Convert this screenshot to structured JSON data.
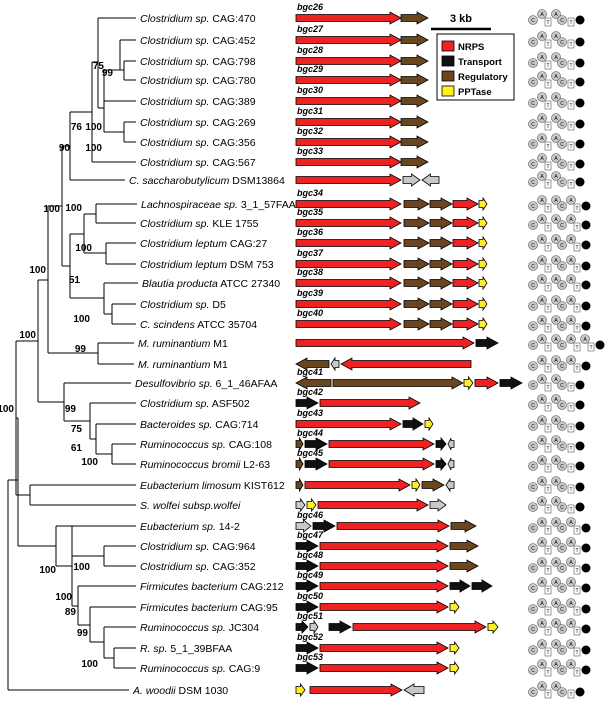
{
  "colors": {
    "NRPS": "#ee2222",
    "Transport": "#111111",
    "Regulatory": "#6b4520",
    "PPTase": "#ffee22",
    "Other": "#c8c8c8"
  },
  "scale": {
    "label": "3 kb",
    "kb": 3
  },
  "legend": [
    {
      "label": "NRPS",
      "key": "NRPS"
    },
    {
      "label": "Transport",
      "key": "Transport"
    },
    {
      "label": "Regulatory",
      "key": "Regulatory"
    },
    {
      "label": "PPTase",
      "key": "PPTase"
    }
  ],
  "taxa": [
    {
      "italic": "Clostridium sp.",
      "plain": " CAG:470",
      "bgc": "bgc26",
      "genes": [
        [
          "N",
          0,
          105
        ],
        [
          "R",
          105,
          27
        ]
      ],
      "dom": [
        "C",
        "A",
        "T",
        "A",
        "C",
        "T",
        "T"
      ]
    },
    {
      "italic": "Clostridium sp.",
      "plain": " CAG:452",
      "bgc": "bgc27",
      "genes": [
        [
          "N",
          0,
          105
        ],
        [
          "R",
          105,
          27
        ]
      ],
      "dom": [
        "C",
        "A",
        "T",
        "A",
        "C",
        "T",
        "T"
      ]
    },
    {
      "italic": "Clostridium sp.",
      "plain": " CAG:798",
      "bgc": "bgc28",
      "genes": [
        [
          "N",
          0,
          105
        ],
        [
          "R",
          105,
          27
        ]
      ],
      "dom": [
        "C",
        "A",
        "T",
        "A",
        "C",
        "T",
        "T"
      ]
    },
    {
      "italic": "Clostridium sp.",
      "plain": " CAG:780",
      "bgc": "bgc29",
      "genes": [
        [
          "N",
          0,
          105
        ],
        [
          "R",
          105,
          27
        ]
      ],
      "dom": [
        "C",
        "A",
        "T",
        "A",
        "C",
        "T",
        "T"
      ]
    },
    {
      "italic": "Clostridium sp.",
      "plain": " CAG:389",
      "bgc": "bgc30",
      "genes": [
        [
          "N",
          0,
          105
        ],
        [
          "R",
          105,
          27
        ]
      ],
      "dom": [
        "C",
        "A",
        "T",
        "A",
        "C",
        "T",
        "T"
      ]
    },
    {
      "italic": "Clostridium sp.",
      "plain": " CAG:269",
      "bgc": "bgc31",
      "genes": [
        [
          "N",
          0,
          105
        ],
        [
          "R",
          105,
          27
        ]
      ],
      "dom": [
        "C",
        "A",
        "T",
        "A",
        "C",
        "T",
        "T"
      ]
    },
    {
      "italic": "Clostridium sp.",
      "plain": " CAG:356",
      "bgc": "bgc32",
      "genes": [
        [
          "N",
          0,
          105
        ],
        [
          "R",
          105,
          27
        ]
      ],
      "dom": [
        "C",
        "A",
        "T",
        "A",
        "C",
        "T",
        "T"
      ]
    },
    {
      "italic": "Clostridium sp.",
      "plain": " CAG:567",
      "bgc": "bgc33",
      "genes": [
        [
          "N",
          0,
          105
        ],
        [
          "R",
          105,
          27
        ]
      ],
      "dom": [
        "C",
        "A",
        "T",
        "A",
        "C",
        "T",
        "T"
      ]
    },
    {
      "italic": "C. saccharobutylicum",
      "plain": " DSM13864",
      "bgc": "",
      "genes": [
        [
          "N",
          0,
          105
        ],
        [
          "O",
          107,
          17
        ],
        [
          "O",
          126,
          17,
          -1
        ]
      ],
      "dom": [
        "C",
        "A",
        "T",
        "A",
        "C",
        "T",
        "T"
      ]
    },
    {
      "italic": "Lachnospiraceae sp.",
      "plain": " 3_1_57FAA",
      "bgc": "bgc34",
      "genes": [
        [
          "N",
          0,
          105
        ],
        [
          "R",
          108,
          25
        ],
        [
          "R",
          134,
          22
        ],
        [
          "N",
          157,
          25
        ],
        [
          "P",
          183,
          8
        ]
      ],
      "dom": [
        "C",
        "A",
        "T",
        "A",
        "C",
        "A",
        "T",
        "T"
      ]
    },
    {
      "italic": "Clostridium sp.",
      "plain": " KLE 1755",
      "bgc": "bgc35",
      "genes": [
        [
          "N",
          0,
          105
        ],
        [
          "R",
          108,
          25
        ],
        [
          "R",
          134,
          22
        ],
        [
          "N",
          157,
          25
        ],
        [
          "P",
          183,
          8
        ]
      ],
      "dom": [
        "C",
        "A",
        "T",
        "A",
        "C",
        "A",
        "T",
        "T"
      ]
    },
    {
      "italic": "Clostridium leptum",
      "plain": " CAG:27",
      "bgc": "bgc36",
      "genes": [
        [
          "N",
          0,
          105
        ],
        [
          "R",
          108,
          25
        ],
        [
          "R",
          134,
          22
        ],
        [
          "N",
          157,
          25
        ],
        [
          "P",
          183,
          8
        ]
      ],
      "dom": [
        "C",
        "A",
        "T",
        "A",
        "C",
        "A",
        "T",
        "T"
      ]
    },
    {
      "italic": "Clostridium leptum",
      "plain": " DSM 753",
      "bgc": "bgc37",
      "genes": [
        [
          "N",
          0,
          105
        ],
        [
          "R",
          108,
          25
        ],
        [
          "R",
          134,
          22
        ],
        [
          "N",
          157,
          25
        ],
        [
          "P",
          183,
          8
        ]
      ],
      "dom": [
        "C",
        "A",
        "T",
        "A",
        "C",
        "A",
        "T",
        "T"
      ]
    },
    {
      "italic": "Blautia producta",
      "plain": " ATCC 27340",
      "bgc": "bgc38",
      "genes": [
        [
          "N",
          0,
          105
        ],
        [
          "R",
          108,
          25
        ],
        [
          "R",
          134,
          22
        ],
        [
          "N",
          157,
          25
        ],
        [
          "P",
          183,
          8
        ]
      ],
      "dom": [
        "C",
        "A",
        "T",
        "A",
        "C",
        "A",
        "T",
        "T"
      ]
    },
    {
      "italic": "Clostridium sp.",
      "plain": " D5",
      "bgc": "bgc39",
      "genes": [
        [
          "N",
          0,
          105
        ],
        [
          "R",
          108,
          25
        ],
        [
          "R",
          134,
          22
        ],
        [
          "N",
          157,
          25
        ],
        [
          "P",
          183,
          8
        ]
      ],
      "dom": [
        "C",
        "A",
        "T",
        "A",
        "C",
        "A",
        "T",
        "T"
      ]
    },
    {
      "italic": "C. scindens",
      "plain": " ATCC 35704",
      "bgc": "bgc40",
      "genes": [
        [
          "N",
          0,
          105
        ],
        [
          "R",
          108,
          25
        ],
        [
          "R",
          134,
          22
        ],
        [
          "N",
          157,
          25
        ],
        [
          "P",
          183,
          8
        ]
      ],
      "dom": [
        "C",
        "A",
        "T",
        "A",
        "C",
        "A",
        "T",
        "T"
      ]
    },
    {
      "italic": "M. ruminantium",
      "plain": " M1",
      "bgc": "",
      "genes": [
        [
          "N",
          0,
          178
        ],
        [
          "T",
          180,
          22
        ]
      ],
      "dom": [
        "C",
        "A",
        "T",
        "A",
        "C",
        "A",
        "T",
        "A",
        "T",
        "T"
      ]
    },
    {
      "italic": "M. ruminantium",
      "plain": " M1",
      "bgc": "",
      "genes": [
        [
          "R",
          0,
          33,
          -1
        ],
        [
          "O",
          35,
          8,
          -1
        ],
        [
          "N",
          45,
          130,
          -1
        ]
      ],
      "dom": [
        "C",
        "A",
        "T",
        "A",
        "C",
        "A",
        "T",
        "T"
      ]
    },
    {
      "italic": "Desulfovibrio sp.",
      "plain": " 6_1_46AFAA",
      "bgc": "bgc41",
      "genes": [
        [
          "R",
          0,
          35,
          -1
        ],
        [
          "R",
          37,
          130
        ],
        [
          "P",
          168,
          9
        ],
        [
          "N",
          179,
          23
        ],
        [
          "T",
          204,
          22
        ]
      ],
      "dom": [
        "C",
        "A",
        "T",
        "A",
        "C",
        "T",
        "T"
      ]
    },
    {
      "italic": "Clostridium sp.",
      "plain": " ASF502",
      "bgc": "bgc42",
      "genes": [
        [
          "T",
          0,
          22
        ],
        [
          "N",
          24,
          100
        ]
      ],
      "dom": [
        "C",
        "A",
        "T",
        "A",
        "C",
        "T",
        "T"
      ]
    },
    {
      "italic": "Bacteroides sp.",
      "plain": " CAG:714",
      "bgc": "bgc43",
      "genes": [
        [
          "N",
          0,
          105
        ],
        [
          "T",
          107,
          20
        ],
        [
          "P",
          129,
          8
        ]
      ],
      "dom": [
        "C",
        "A",
        "T",
        "A",
        "C",
        "T",
        "T"
      ]
    },
    {
      "italic": "Ruminococcus sp.",
      "plain": " CAG:108",
      "bgc": "bgc44",
      "genes": [
        [
          "R",
          0,
          7
        ],
        [
          "T",
          9,
          22
        ],
        [
          "N",
          33,
          105
        ],
        [
          "T",
          140,
          10
        ],
        [
          "O",
          152,
          6,
          -1
        ]
      ],
      "dom": [
        "C",
        "A",
        "T",
        "A",
        "C",
        "T",
        "T"
      ]
    },
    {
      "italic": "Ruminococcus bromii",
      "plain": " L2-63",
      "bgc": "bgc45",
      "genes": [
        [
          "R",
          0,
          7
        ],
        [
          "T",
          9,
          22
        ],
        [
          "N",
          33,
          105
        ],
        [
          "T",
          140,
          10
        ],
        [
          "O",
          152,
          6,
          -1
        ]
      ],
      "dom": [
        "C",
        "A",
        "T",
        "A",
        "C",
        "T",
        "T"
      ]
    },
    {
      "italic": "Eubacterium limosum",
      "plain": " KIST612",
      "bgc": "",
      "genes": [
        [
          "R",
          0,
          7
        ],
        [
          "N",
          9,
          105
        ],
        [
          "P",
          116,
          8
        ],
        [
          "R",
          126,
          22
        ],
        [
          "O",
          150,
          8,
          -1
        ]
      ],
      "dom": [
        "C",
        "A",
        "T",
        "A",
        "C",
        "T",
        "T"
      ]
    },
    {
      "italic": "S. wolfei subsp.wolfei",
      "plain": "",
      "bgc": "",
      "genes": [
        [
          "O",
          0,
          9
        ],
        [
          "P",
          11,
          9
        ],
        [
          "N",
          22,
          110
        ],
        [
          "O",
          134,
          16
        ]
      ],
      "dom": [
        "C",
        "A",
        "T",
        "A",
        "C",
        "T",
        "T"
      ]
    },
    {
      "italic": "Eubacterium sp.",
      "plain": " 14-2",
      "bgc": "bgc46",
      "genes": [
        [
          "O",
          0,
          15
        ],
        [
          "T",
          17,
          22
        ],
        [
          "N",
          41,
          112
        ],
        [
          "R",
          155,
          25
        ]
      ],
      "dom": [
        "C",
        "A",
        "T",
        "A",
        "C",
        "A",
        "T",
        "T"
      ]
    },
    {
      "italic": "Clostridium sp.",
      "plain": " CAG:964",
      "bgc": "bgc47",
      "genes": [
        [
          "T",
          0,
          22
        ],
        [
          "N",
          24,
          128
        ],
        [
          "R",
          154,
          28
        ]
      ],
      "dom": [
        "C",
        "A",
        "T",
        "A",
        "C",
        "A",
        "T",
        "T"
      ]
    },
    {
      "italic": "Clostridium sp.",
      "plain": " CAG:352",
      "bgc": "bgc48",
      "genes": [
        [
          "T",
          0,
          22
        ],
        [
          "N",
          24,
          128
        ],
        [
          "R",
          154,
          28
        ]
      ],
      "dom": [
        "C",
        "A",
        "T",
        "A",
        "C",
        "A",
        "T",
        "T"
      ]
    },
    {
      "italic": "Firmicutes bacterium",
      "plain": " CAG:212",
      "bgc": "bgc49",
      "genes": [
        [
          "T",
          0,
          22
        ],
        [
          "N",
          24,
          128
        ],
        [
          "T",
          154,
          20
        ],
        [
          "T",
          176,
          20
        ]
      ],
      "dom": [
        "C",
        "A",
        "T",
        "A",
        "C",
        "A",
        "T",
        "T"
      ]
    },
    {
      "italic": "Firmicutes bacterium",
      "plain": " CAG:95",
      "bgc": "bgc50",
      "genes": [
        [
          "T",
          0,
          22
        ],
        [
          "N",
          24,
          128
        ],
        [
          "P",
          154,
          9
        ]
      ],
      "dom": [
        "C",
        "A",
        "T",
        "A",
        "C",
        "A",
        "T",
        "T"
      ]
    },
    {
      "italic": "Ruminococcus sp.",
      "plain": " JC304",
      "bgc": "bgc51",
      "genes": [
        [
          "T",
          0,
          12
        ],
        [
          "O",
          14,
          8
        ],
        [
          "T",
          33,
          22
        ],
        [
          "N",
          57,
          133
        ],
        [
          "P",
          192,
          10
        ]
      ],
      "dom": [
        "C",
        "A",
        "T",
        "A",
        "C",
        "A",
        "T",
        "T"
      ]
    },
    {
      "italic": "R. sp.",
      "plain": " 5_1_39BFAA",
      "bgc": "bgc52",
      "genes": [
        [
          "T",
          0,
          22
        ],
        [
          "N",
          24,
          128
        ],
        [
          "P",
          154,
          9
        ]
      ],
      "dom": [
        "C",
        "A",
        "T",
        "A",
        "C",
        "A",
        "T",
        "T"
      ]
    },
    {
      "italic": "Ruminococcus sp.",
      "plain": " CAG:9",
      "bgc": "bgc53",
      "genes": [
        [
          "T",
          0,
          22
        ],
        [
          "N",
          24,
          128
        ],
        [
          "P",
          154,
          9
        ]
      ],
      "dom": [
        "C",
        "A",
        "T",
        "A",
        "C",
        "A",
        "T",
        "T"
      ]
    },
    {
      "italic": "A. woodii",
      "plain": " DSM 1030",
      "bgc": "",
      "genes": [
        [
          "P",
          0,
          9
        ],
        [
          "N",
          14,
          92
        ],
        [
          "O",
          108,
          20,
          -1
        ]
      ],
      "dom": [
        "C",
        "A",
        "T",
        "A",
        "C",
        "T",
        "T"
      ]
    }
  ],
  "bootstrap": [
    {
      "label": "75",
      "at": "n_28_29"
    },
    {
      "label": "99",
      "at": "n_28_29_b"
    },
    {
      "label": "100",
      "at": "n_31_32"
    },
    {
      "label": "100",
      "at": "n_31_32_b"
    },
    {
      "label": "76",
      "at": "n_76"
    },
    {
      "label": "90",
      "at": "n_90"
    },
    {
      "label": "100",
      "at": "n_clade1"
    },
    {
      "label": "100",
      "at": "n_34_35"
    },
    {
      "label": "100",
      "at": "n_36_37"
    },
    {
      "label": "51",
      "at": "n_51"
    },
    {
      "label": "100",
      "at": "n_39_40"
    },
    {
      "label": "100",
      "at": "n_top100"
    },
    {
      "label": "99",
      "at": "n_mrum"
    },
    {
      "label": "100",
      "at": "n_root_up"
    },
    {
      "label": "99",
      "at": "n_desulfo"
    },
    {
      "label": "75",
      "at": "n_75b"
    },
    {
      "label": "61",
      "at": "n_61"
    },
    {
      "label": "100",
      "at": "n_44_45"
    },
    {
      "label": "100",
      "at": "n_root"
    },
    {
      "label": "100",
      "at": "n_eub"
    },
    {
      "label": "100",
      "at": "n_47_48"
    },
    {
      "label": "100",
      "at": "n_firm"
    },
    {
      "label": "89",
      "at": "n_89"
    },
    {
      "label": "99",
      "at": "n_99c"
    },
    {
      "label": "100",
      "at": "n_52_53"
    }
  ]
}
